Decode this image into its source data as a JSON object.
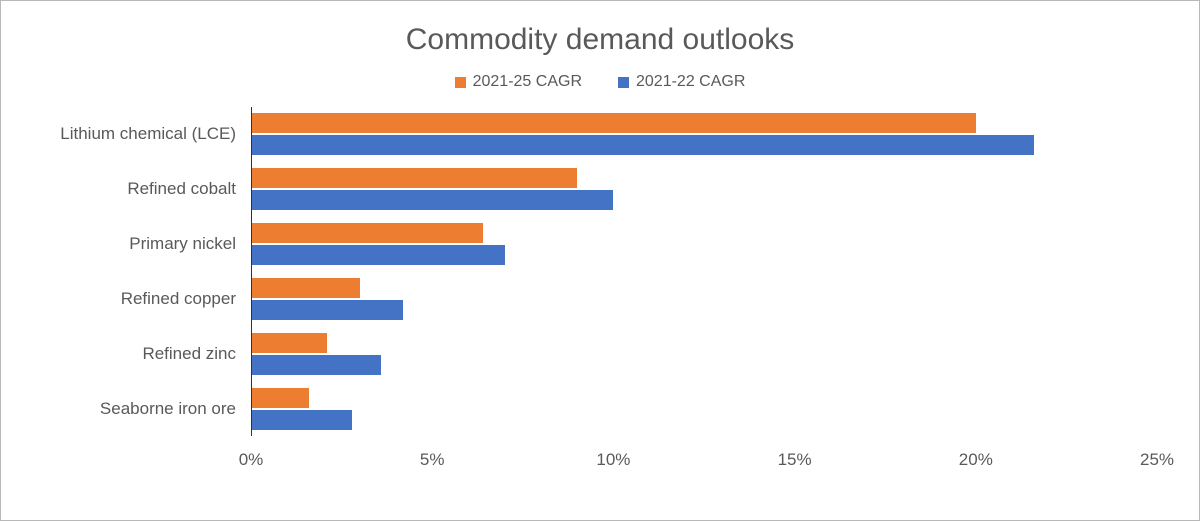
{
  "chart_data": {
    "type": "bar",
    "orientation": "horizontal",
    "title": "Commodity demand outlooks",
    "categories": [
      "Lithium chemical (LCE)",
      "Refined cobalt",
      "Primary  nickel",
      "Refined copper",
      "Refined zinc",
      "Seaborne iron ore"
    ],
    "series": [
      {
        "name": "2021-25 CAGR",
        "color": "#ED7D31",
        "values": [
          20.0,
          9.0,
          6.4,
          3.0,
          2.1,
          1.6
        ]
      },
      {
        "name": "2021-22 CAGR",
        "color": "#4472C4",
        "values": [
          21.6,
          10.0,
          7.0,
          4.2,
          3.6,
          2.8
        ]
      }
    ],
    "xlabel": "",
    "ylabel": "",
    "xlim": [
      0,
      25
    ],
    "x_ticks": [
      "0%",
      "5%",
      "10%",
      "15%",
      "20%",
      "25%"
    ],
    "grid": false,
    "legend_position": "top"
  },
  "colors": {
    "series_2021_25": "#ED7D31",
    "series_2021_22": "#4472C4",
    "text": "#595959",
    "axis_line": "#333333"
  }
}
